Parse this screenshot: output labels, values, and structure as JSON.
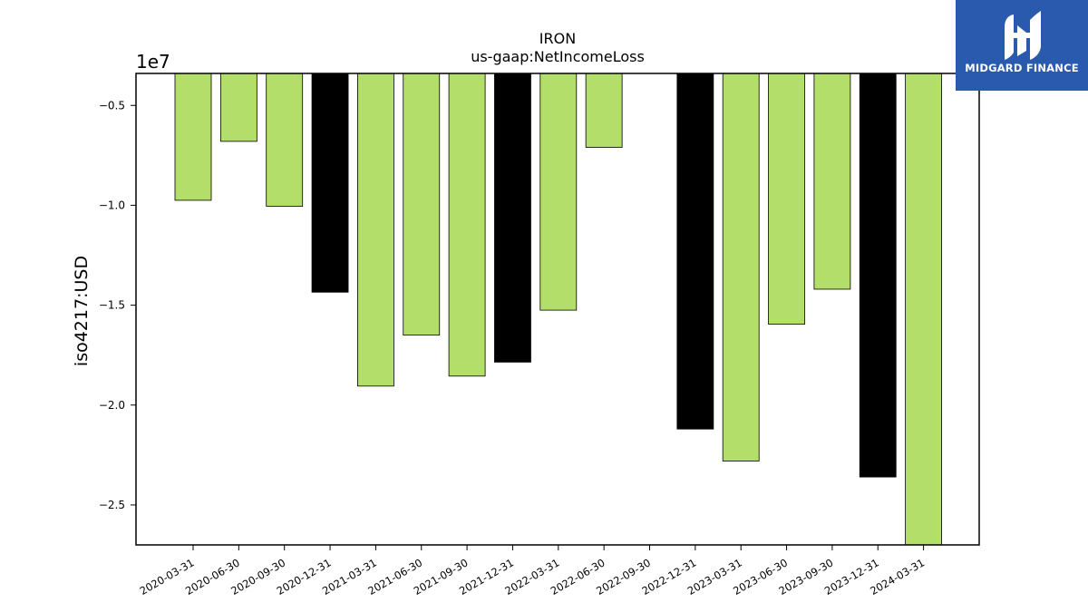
{
  "brand": {
    "name": "MIDGARD FINANCE",
    "bg_color": "#2a5aad"
  },
  "chart_data": {
    "type": "bar",
    "title": "IRON",
    "subtitle": "us-gaap:NetIncomeLoss",
    "xlabel": "",
    "ylabel": "iso4217:USD",
    "y_offset_label": "1e7",
    "y_scale": 10000000,
    "ylim": [
      -27000000,
      -3400000
    ],
    "grid": false,
    "y_ticks": [
      -5000000,
      -10000000,
      -15000000,
      -20000000,
      -25000000
    ],
    "y_tick_labels": [
      "−0.5",
      "−1.0",
      "−1.5",
      "−2.0",
      "−2.5"
    ],
    "categories": [
      "2020-03-31",
      "2020-06-30",
      "2020-09-30",
      "2020-12-31",
      "2021-03-31",
      "2021-06-30",
      "2021-09-30",
      "2021-12-31",
      "2022-03-31",
      "2022-06-30",
      "2022-09-30",
      "2022-12-31",
      "2023-03-31",
      "2023-06-30",
      "2023-09-30",
      "2023-12-31",
      "2024-03-31"
    ],
    "values": [
      -9750000,
      -6800000,
      -10050000,
      -14350000,
      -19050000,
      -16500000,
      -18550000,
      -17850000,
      -15250000,
      -7100000,
      null,
      -21200000,
      -22800000,
      -15950000,
      -14200000,
      -23600000,
      -27000000
    ],
    "bar_colors": [
      "#b3de69",
      "#b3de69",
      "#b3de69",
      "#000000",
      "#b3de69",
      "#b3de69",
      "#b3de69",
      "#000000",
      "#b3de69",
      "#b3de69",
      "#b3de69",
      "#000000",
      "#b3de69",
      "#b3de69",
      "#b3de69",
      "#000000",
      "#b3de69"
    ],
    "colors": {
      "quarter": "#b3de69",
      "year_end": "#000000"
    }
  }
}
